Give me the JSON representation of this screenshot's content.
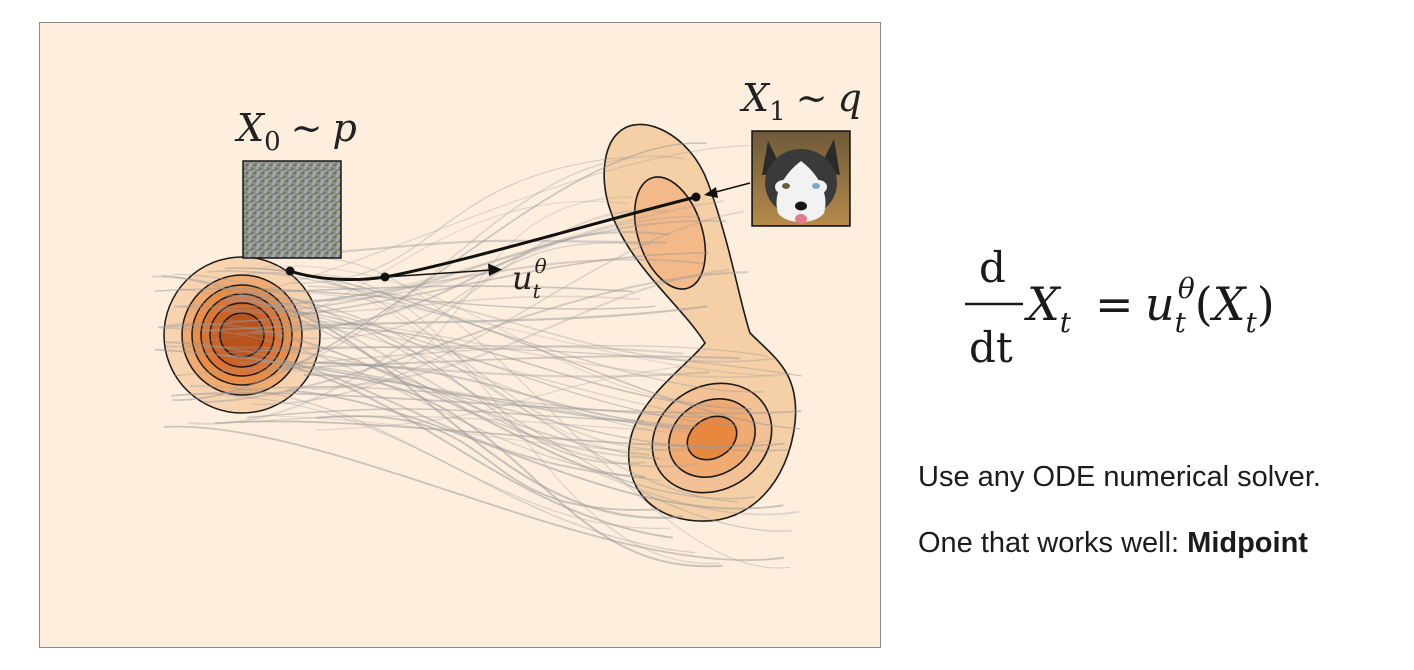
{
  "figure": {
    "source_label": "X₀ ∼ p",
    "source_label_parts": {
      "var": "X",
      "sub": "0",
      "rel": "∼",
      "dist": "p"
    },
    "target_label_parts": {
      "var": "X",
      "sub": "1",
      "rel": "∼",
      "dist": "q"
    },
    "velocity_label_parts": {
      "var": "u",
      "sub": "t",
      "sup": "θ"
    },
    "source_image": "noise-image",
    "target_image": "husky-dog-photo",
    "colors": {
      "background": "#fdeedd",
      "density_fill": "#f5cfa6",
      "density_core": "#c65a1e",
      "trajectory": "#9a9a9a"
    }
  },
  "equation": {
    "numerator": "d",
    "denominator": "dt",
    "lhs_var": "X",
    "lhs_sub": "t",
    "equals": "=",
    "rhs_var": "u",
    "rhs_sub": "t",
    "rhs_sup": "θ",
    "rhs_arg_open": "(",
    "rhs_arg_var": "X",
    "rhs_arg_sub": "t",
    "rhs_arg_close": ")"
  },
  "captions": {
    "line1": "Use any ODE numerical solver.",
    "line2_prefix": "One that works well: ",
    "line2_bold": "Midpoint"
  }
}
